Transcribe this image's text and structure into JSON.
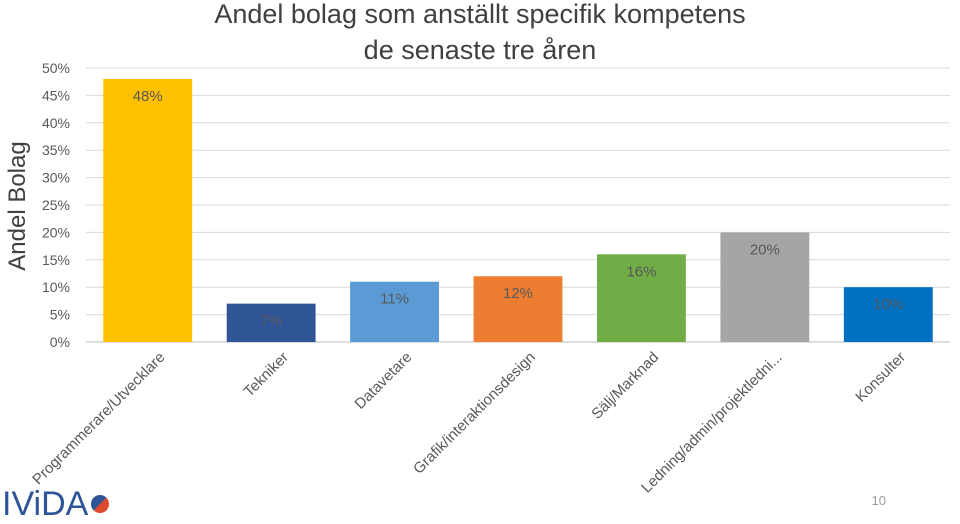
{
  "chart_data": {
    "type": "bar",
    "title": "Andel bolag som anställt specifik kompetens",
    "subtitle": "de senaste tre åren",
    "ylabel": "Andel Bolag",
    "ylim": [
      0,
      50
    ],
    "yticks": [
      "0%",
      "5%",
      "10%",
      "15%",
      "20%",
      "25%",
      "30%",
      "35%",
      "40%",
      "45%",
      "50%"
    ],
    "grid": true,
    "categories": [
      "Programmerare/Utvecklare",
      "Tekniker",
      "Datavetare",
      "Grafik/interaktionsdesign",
      "Sälj/Marknad",
      "Ledning/admin/projektledni...",
      "Konsulter"
    ],
    "values": [
      48,
      7,
      11,
      12,
      16,
      20,
      10
    ],
    "data_labels": [
      "48%",
      "7%",
      "11%",
      "12%",
      "16%",
      "20%",
      "10%"
    ],
    "colors": [
      "#ffc000",
      "#2f5597",
      "#5b9bd5",
      "#ed7d31",
      "#70ad47",
      "#a5a5a5",
      "#0070c0"
    ]
  },
  "footer": {
    "logo_text": "IViDA",
    "page_number": "10"
  }
}
